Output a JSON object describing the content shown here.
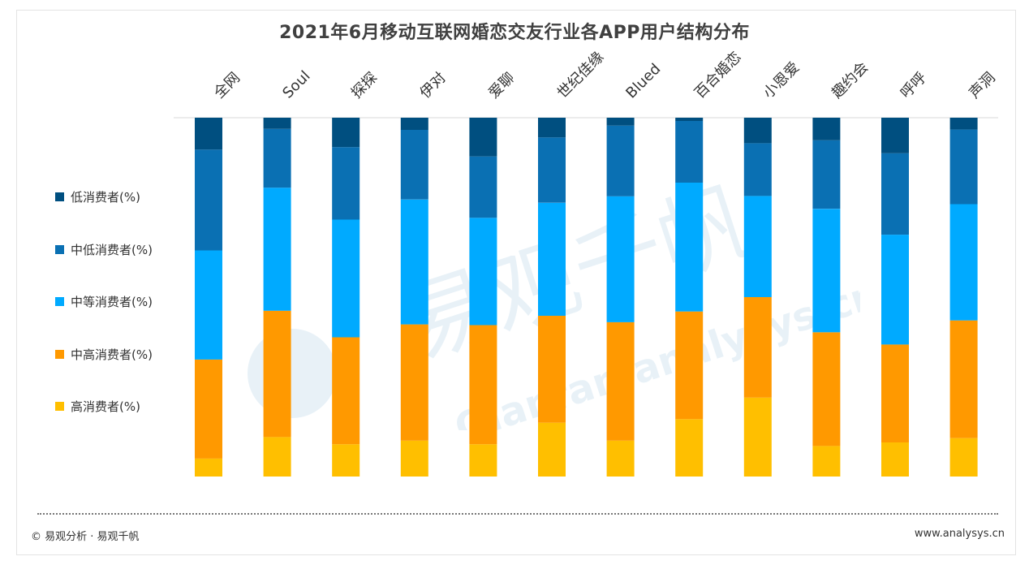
{
  "title": "2021年6月移动互联网婚恋交友行业各APP用户结构分布",
  "footer": {
    "left": "© 易观分析 · 易观千帆",
    "right": "www.analysys.cn"
  },
  "watermark": {
    "text_cn": "易观千帆",
    "text_en": "Qianfan.analysys.cn"
  },
  "chart_data": {
    "type": "bar",
    "stacked": true,
    "normalized_percent": true,
    "ylim": [
      0,
      100
    ],
    "legend_position": "left",
    "categories": [
      "全网",
      "Soul",
      "探探",
      "伊对",
      "爱聊",
      "世纪佳缘",
      "Blued",
      "百合婚恋",
      "小恩爱",
      "趣约会",
      "呼呼",
      "声洞"
    ],
    "series": [
      {
        "name": "高消费者(%)",
        "color": "#FFBF00",
        "values": [
          5.0,
          11.0,
          9.0,
          10.0,
          9.0,
          15.0,
          10.0,
          16.0,
          22.0,
          8.5,
          9.5,
          10.7
        ]
      },
      {
        "name": "中高消费者(%)",
        "color": "#FF9900",
        "values": [
          27.6,
          35.2,
          29.8,
          32.4,
          33.2,
          29.8,
          33.0,
          30.0,
          28.0,
          31.7,
          27.3,
          32.8
        ]
      },
      {
        "name": "中等消费者(%)",
        "color": "#00AAFF",
        "values": [
          30.4,
          34.3,
          32.8,
          34.8,
          29.9,
          31.5,
          35.1,
          35.9,
          28.2,
          34.4,
          30.6,
          32.4
        ]
      },
      {
        "name": "中低消费者(%)",
        "color": "#0A70B3",
        "values": [
          28.1,
          16.4,
          20.2,
          19.4,
          17.1,
          18.2,
          19.7,
          17.2,
          14.7,
          19.1,
          22.7,
          20.8
        ]
      },
      {
        "name": "低消费者(%)",
        "color": "#004F80",
        "values": [
          8.9,
          3.1,
          8.2,
          3.4,
          10.8,
          5.5,
          2.2,
          0.9,
          7.1,
          6.3,
          9.9,
          3.3
        ]
      }
    ]
  }
}
